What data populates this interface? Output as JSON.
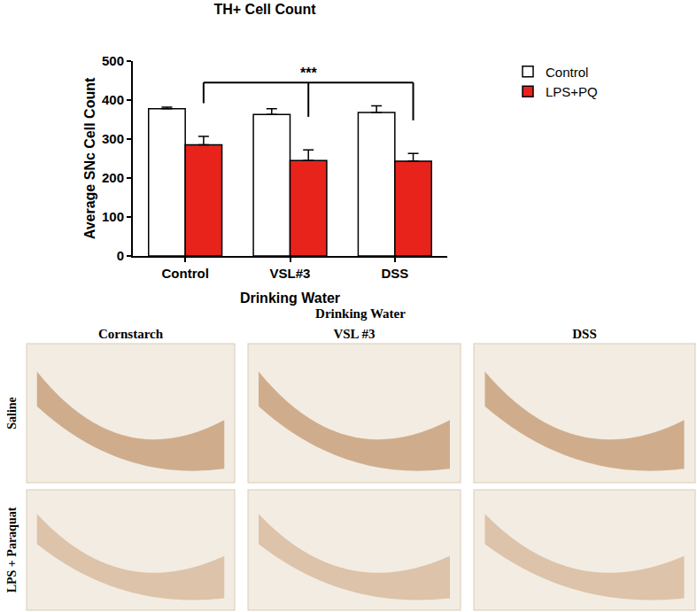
{
  "chart_data": {
    "type": "bar",
    "title": "TH+ Cell Count",
    "x_label": "Drinking Water",
    "y_label": "Average SNc Cell Count",
    "categories": [
      "Control",
      "VSL#3",
      "DSS"
    ],
    "series": [
      {
        "name": "Control",
        "color": "#ffffff",
        "values": [
          378,
          363,
          368
        ],
        "errors": [
          4,
          15,
          17
        ]
      },
      {
        "name": "LPS+PQ",
        "color": "#e8231c",
        "values": [
          285,
          245,
          243
        ],
        "errors": [
          22,
          27,
          20
        ]
      }
    ],
    "ylim": [
      0,
      500
    ],
    "yticks": [
      0,
      100,
      200,
      300,
      400,
      500
    ],
    "grid": false,
    "legend": "right",
    "significance": {
      "label": "***",
      "series": "LPS+PQ",
      "from": "Control",
      "to": [
        "VSL#3",
        "DSS"
      ]
    }
  },
  "micrographs": {
    "title": "Drinking Water",
    "columns": [
      "Cornstarch",
      "VSL #3",
      "DSS"
    ],
    "rows": [
      "Saline",
      "LPS + Paraquat"
    ]
  }
}
